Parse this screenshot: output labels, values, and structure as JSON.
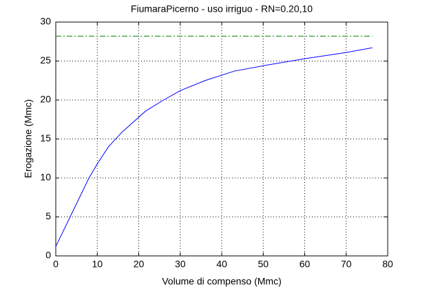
{
  "chart_data": {
    "type": "line",
    "title": "FiumaraPicerno  -  uso irriguo  -   RN=0.20,10",
    "xlabel": "Volume di compenso (Mmc)",
    "ylabel": "Erogazione (Mmc)",
    "series": [
      {
        "color": "#0000ff",
        "style": "solid",
        "x": [
          0,
          2,
          4,
          6,
          8,
          10,
          12.7,
          16,
          21.7,
          26,
          30,
          36,
          43,
          50,
          60,
          70,
          76.3
        ],
        "values": [
          1.2,
          3.4,
          5.6,
          7.8,
          10,
          11.8,
          14,
          15.9,
          18.6,
          20,
          21.2,
          22.5,
          23.7,
          24.4,
          25.3,
          26.1,
          26.7
        ]
      },
      {
        "color": "#008000",
        "style": "dashdot",
        "x": [
          0,
          76.3
        ],
        "values": [
          28.2,
          28.2
        ]
      }
    ],
    "xlim": [
      0,
      80
    ],
    "xticks": [
      0,
      10,
      20,
      30,
      40,
      50,
      60,
      70,
      80
    ],
    "ylim": [
      0,
      30
    ],
    "yticks": [
      0,
      5,
      10,
      15,
      20,
      25,
      30
    ],
    "grid": true
  }
}
